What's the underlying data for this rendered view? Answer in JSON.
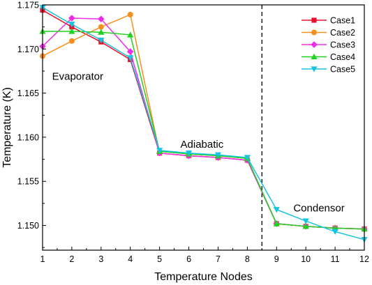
{
  "chart_data": {
    "type": "line",
    "xlabel": "Temperature Nodes",
    "ylabel": "Temperature (K)",
    "xlim": [
      1,
      12
    ],
    "ylim": [
      1.1472,
      1.175
    ],
    "x": [
      1,
      2,
      3,
      4,
      5,
      6,
      7,
      8,
      9,
      10,
      11,
      12
    ],
    "x_ticks": [
      "1",
      "2",
      "3",
      "4",
      "5",
      "6",
      "7",
      "8",
      "9",
      "10",
      "11",
      "12"
    ],
    "y_ticks": [
      1.15,
      1.155,
      1.16,
      1.165,
      1.17,
      1.175
    ],
    "y_tick_labels": [
      "1.150",
      "1.155",
      "1.160",
      "1.165",
      "1.170",
      "1.175"
    ],
    "divider_x": 8.5,
    "annotations": [
      {
        "text": "Evaporator",
        "x": 2.2,
        "y": 1.1665
      },
      {
        "text": "Adiabatic",
        "x": 6.45,
        "y": 1.1588
      },
      {
        "text": "Condensor",
        "x": 10.45,
        "y": 1.1516
      }
    ],
    "legend_position": "top-right",
    "series": [
      {
        "name": "Case1",
        "color": "#e8102b",
        "marker": "square",
        "values": [
          1.1744,
          1.1725,
          1.1708,
          1.1688,
          1.1582,
          1.1579,
          1.1577,
          1.1574,
          1.1502,
          1.1499,
          1.1497,
          1.1496
        ]
      },
      {
        "name": "Case2",
        "color": "#f5901e",
        "marker": "circle",
        "values": [
          1.1692,
          1.1709,
          1.1725,
          1.1739,
          1.1582,
          1.1579,
          1.1577,
          1.1574,
          1.1502,
          1.1499,
          1.1497,
          1.1496
        ]
      },
      {
        "name": "Case3",
        "color": "#ee2be8",
        "marker": "diamond",
        "values": [
          1.1703,
          1.1735,
          1.1734,
          1.1697,
          1.1582,
          1.1579,
          1.1577,
          1.1574,
          1.1502,
          1.1499,
          1.1497,
          1.1496
        ]
      },
      {
        "name": "Case4",
        "color": "#1fd21f",
        "marker": "triangle-up",
        "values": [
          1.172,
          1.172,
          1.1719,
          1.1716,
          1.1584,
          1.1581,
          1.1579,
          1.1576,
          1.1502,
          1.1499,
          1.1497,
          1.1496
        ]
      },
      {
        "name": "Case5",
        "color": "#18c3e0",
        "marker": "triangle-down",
        "values": [
          1.1747,
          1.1728,
          1.171,
          1.169,
          1.1585,
          1.1582,
          1.158,
          1.1577,
          1.1518,
          1.1505,
          1.1493,
          1.1484
        ]
      }
    ]
  }
}
